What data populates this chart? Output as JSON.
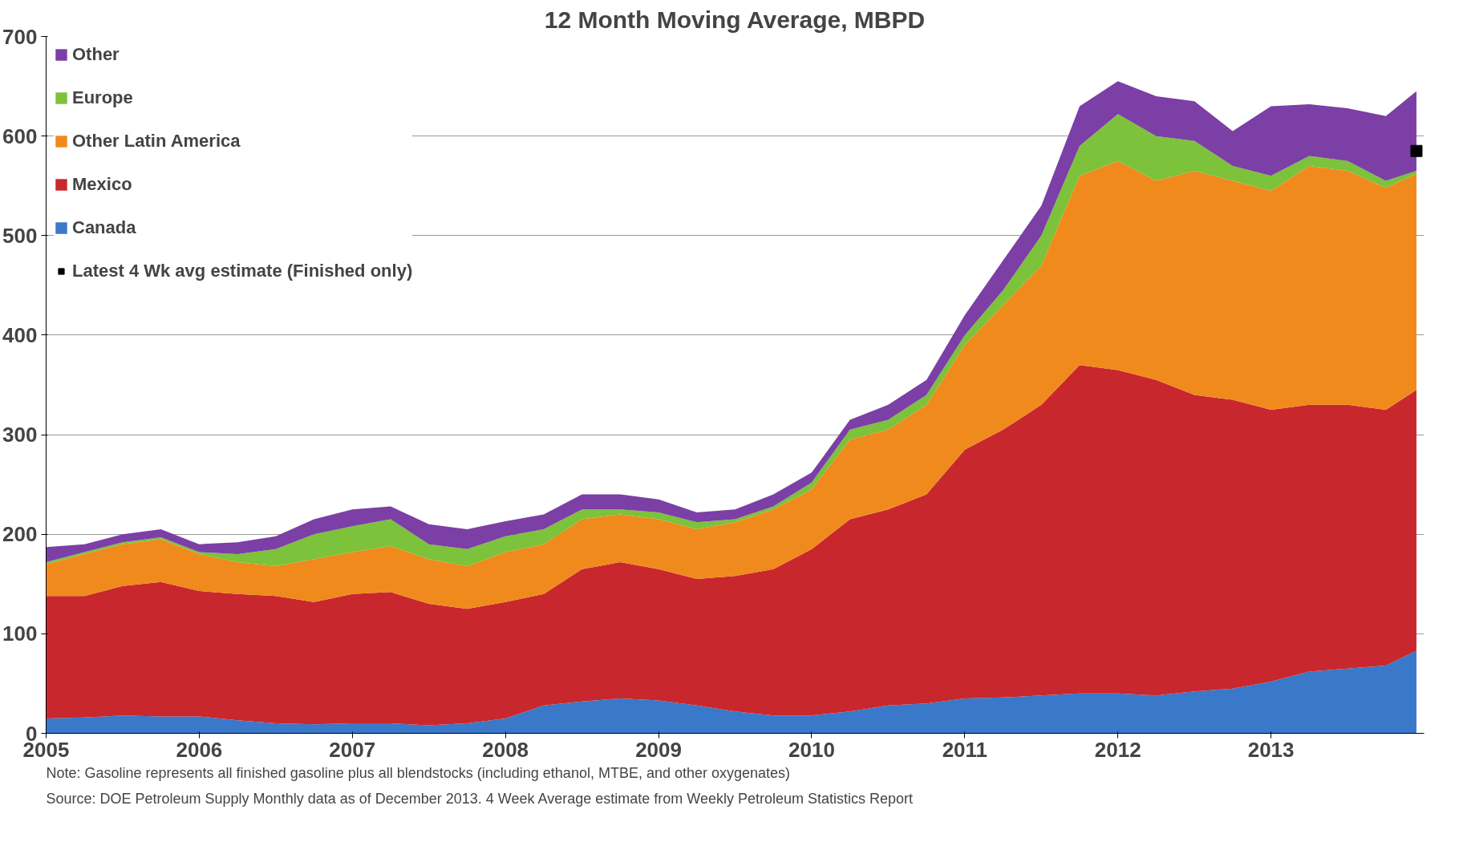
{
  "chart_data": {
    "type": "area",
    "stacked": true,
    "title": "12 Month Moving Average, MBPD",
    "x": [
      2005,
      2005.25,
      2005.5,
      2005.75,
      2006,
      2006.25,
      2006.5,
      2006.75,
      2007,
      2007.25,
      2007.5,
      2007.75,
      2008,
      2008.25,
      2008.5,
      2008.75,
      2009,
      2009.25,
      2009.5,
      2009.75,
      2010,
      2010.25,
      2010.5,
      2010.75,
      2011,
      2011.25,
      2011.5,
      2011.75,
      2012,
      2012.25,
      2012.5,
      2012.75,
      2013,
      2013.25,
      2013.5,
      2013.75,
      2013.95
    ],
    "series": [
      {
        "name": "Canada",
        "color": "#3a78c9",
        "values": [
          15,
          16,
          18,
          17,
          17,
          13,
          10,
          9,
          10,
          10,
          8,
          10,
          15,
          28,
          32,
          35,
          33,
          28,
          22,
          18,
          18,
          22,
          28,
          30,
          35,
          36,
          38,
          40,
          40,
          38,
          42,
          45,
          52,
          62,
          65,
          68,
          83
        ]
      },
      {
        "name": "Mexico",
        "color": "#c8282d",
        "values": [
          123,
          122,
          130,
          135,
          126,
          127,
          128,
          123,
          130,
          132,
          122,
          115,
          117,
          112,
          133,
          137,
          132,
          127,
          136,
          147,
          167,
          193,
          197,
          210,
          250,
          269,
          292,
          330,
          325,
          317,
          298,
          290,
          273,
          268,
          265,
          257,
          262
        ]
      },
      {
        "name": "Other Latin America",
        "color": "#f08a1c",
        "values": [
          32,
          42,
          42,
          43,
          37,
          32,
          30,
          43,
          42,
          46,
          45,
          43,
          50,
          50,
          50,
          48,
          50,
          50,
          54,
          60,
          60,
          80,
          80,
          90,
          105,
          125,
          140,
          190,
          210,
          200,
          225,
          220,
          220,
          240,
          235,
          223,
          217
        ]
      },
      {
        "name": "Europe",
        "color": "#7cc23a",
        "values": [
          2,
          2,
          2,
          2,
          2,
          8,
          17,
          25,
          26,
          27,
          15,
          17,
          16,
          15,
          10,
          5,
          7,
          7,
          3,
          3,
          7,
          10,
          10,
          10,
          10,
          15,
          30,
          30,
          47,
          45,
          30,
          15,
          15,
          10,
          10,
          7,
          3
        ]
      },
      {
        "name": "Other",
        "color": "#7b3fa6",
        "values": [
          15,
          8,
          8,
          8,
          8,
          12,
          13,
          15,
          17,
          13,
          20,
          20,
          15,
          15,
          15,
          15,
          13,
          10,
          10,
          12,
          10,
          10,
          15,
          15,
          20,
          30,
          30,
          40,
          33,
          40,
          40,
          35,
          70,
          52,
          53,
          65,
          80
        ]
      },
      {
        "name": "Latest 4 Wk avg estimate (Finished only)",
        "type": "scatter",
        "marker": "square",
        "color": "#000000",
        "x": [
          2013.95
        ],
        "values": [
          585
        ]
      }
    ],
    "xlim": [
      2005,
      2014
    ],
    "xticks": [
      2005,
      2006,
      2007,
      2008,
      2009,
      2010,
      2011,
      2012,
      2013
    ],
    "ylim": [
      0,
      700
    ],
    "yticks": [
      0,
      100,
      200,
      300,
      400,
      500,
      600,
      700
    ],
    "grid": "y",
    "legend": "top left",
    "annotations": [
      "Note:  Gasoline represents all finished gasoline plus all blendstocks (including ethanol, MTBE, and other oxygenates)",
      "Source:  DOE Petroleum Supply Monthly data as of December 2013.   4 Week Average estimate from Weekly Petroleum Statistics Report"
    ]
  }
}
